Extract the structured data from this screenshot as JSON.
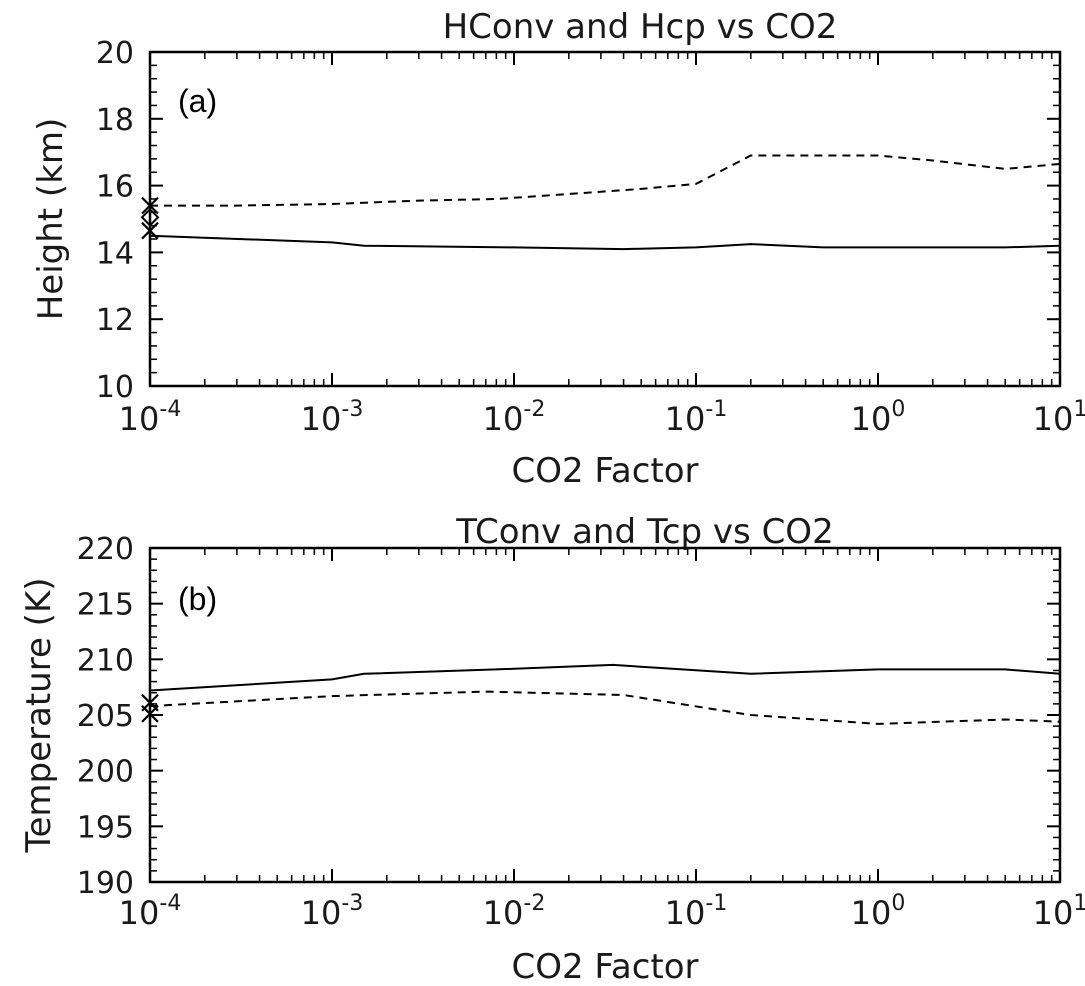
{
  "chart_data": [
    {
      "type": "line",
      "panel_label": "(a)",
      "title": "HConv and Hcp vs CO2",
      "xlabel": "CO2 Factor",
      "ylabel": "Height (km)",
      "xscale": "log",
      "xlim": [
        0.0001,
        10
      ],
      "ylim": [
        10,
        20
      ],
      "xticks": [
        {
          "base": "10",
          "exp": "-4"
        },
        {
          "base": "10",
          "exp": "-3"
        },
        {
          "base": "10",
          "exp": "-2"
        },
        {
          "base": "10",
          "exp": "-1"
        },
        {
          "base": "10",
          "exp": "0"
        },
        {
          "base": "10",
          "exp": "1"
        }
      ],
      "yticks": [
        "10",
        "12",
        "14",
        "16",
        "18",
        "20"
      ],
      "grid": false,
      "series": [
        {
          "style": "solid",
          "x": [
            0.0001,
            0.001,
            0.0015,
            0.01,
            0.04,
            0.1,
            0.2,
            0.5,
            1,
            5,
            10
          ],
          "y": [
            14.5,
            14.3,
            14.2,
            14.15,
            14.1,
            14.15,
            14.25,
            14.15,
            14.15,
            14.15,
            14.2
          ]
        },
        {
          "style": "dashed",
          "x": [
            0.0001,
            0.0003,
            0.001,
            0.003,
            0.008,
            0.02,
            0.05,
            0.1,
            0.2,
            0.5,
            1,
            2,
            5,
            10
          ],
          "y": [
            15.4,
            15.4,
            15.45,
            15.55,
            15.6,
            15.75,
            15.9,
            16.05,
            16.9,
            16.9,
            16.9,
            16.75,
            16.5,
            16.65
          ]
        }
      ],
      "markers": [
        {
          "symbol": "x",
          "x": 0.0001,
          "y": 14.65
        },
        {
          "symbol": "x",
          "x": 0.0001,
          "y": 15.4
        },
        {
          "symbol": "diamond",
          "x": 0.0001,
          "y": 15.05
        }
      ]
    },
    {
      "type": "line",
      "panel_label": "(b)",
      "title": "TConv and Tcp vs CO2",
      "xlabel": "CO2 Factor",
      "ylabel": "Temperature (K)",
      "xscale": "log",
      "xlim": [
        0.0001,
        10
      ],
      "ylim": [
        190,
        220
      ],
      "xticks": [
        {
          "base": "10",
          "exp": "-4"
        },
        {
          "base": "10",
          "exp": "-3"
        },
        {
          "base": "10",
          "exp": "-2"
        },
        {
          "base": "10",
          "exp": "-1"
        },
        {
          "base": "10",
          "exp": "0"
        },
        {
          "base": "10",
          "exp": "1"
        }
      ],
      "yticks": [
        "190",
        "195",
        "200",
        "205",
        "210",
        "215",
        "220"
      ],
      "grid": false,
      "series": [
        {
          "style": "solid",
          "x": [
            0.0001,
            0.001,
            0.0015,
            0.008,
            0.035,
            0.2,
            1,
            5,
            10
          ],
          "y": [
            207.2,
            208.2,
            208.7,
            209.1,
            209.5,
            208.7,
            209.1,
            209.1,
            208.7
          ]
        },
        {
          "style": "dashed",
          "x": [
            0.0001,
            0.001,
            0.007,
            0.04,
            0.2,
            1,
            5,
            10
          ],
          "y": [
            205.8,
            206.7,
            207.1,
            206.8,
            205.0,
            204.2,
            204.6,
            204.4
          ]
        }
      ],
      "markers": [
        {
          "symbol": "x",
          "x": 0.0001,
          "y": 206.1
        },
        {
          "symbol": "x",
          "x": 0.0001,
          "y": 205.1
        }
      ]
    }
  ]
}
